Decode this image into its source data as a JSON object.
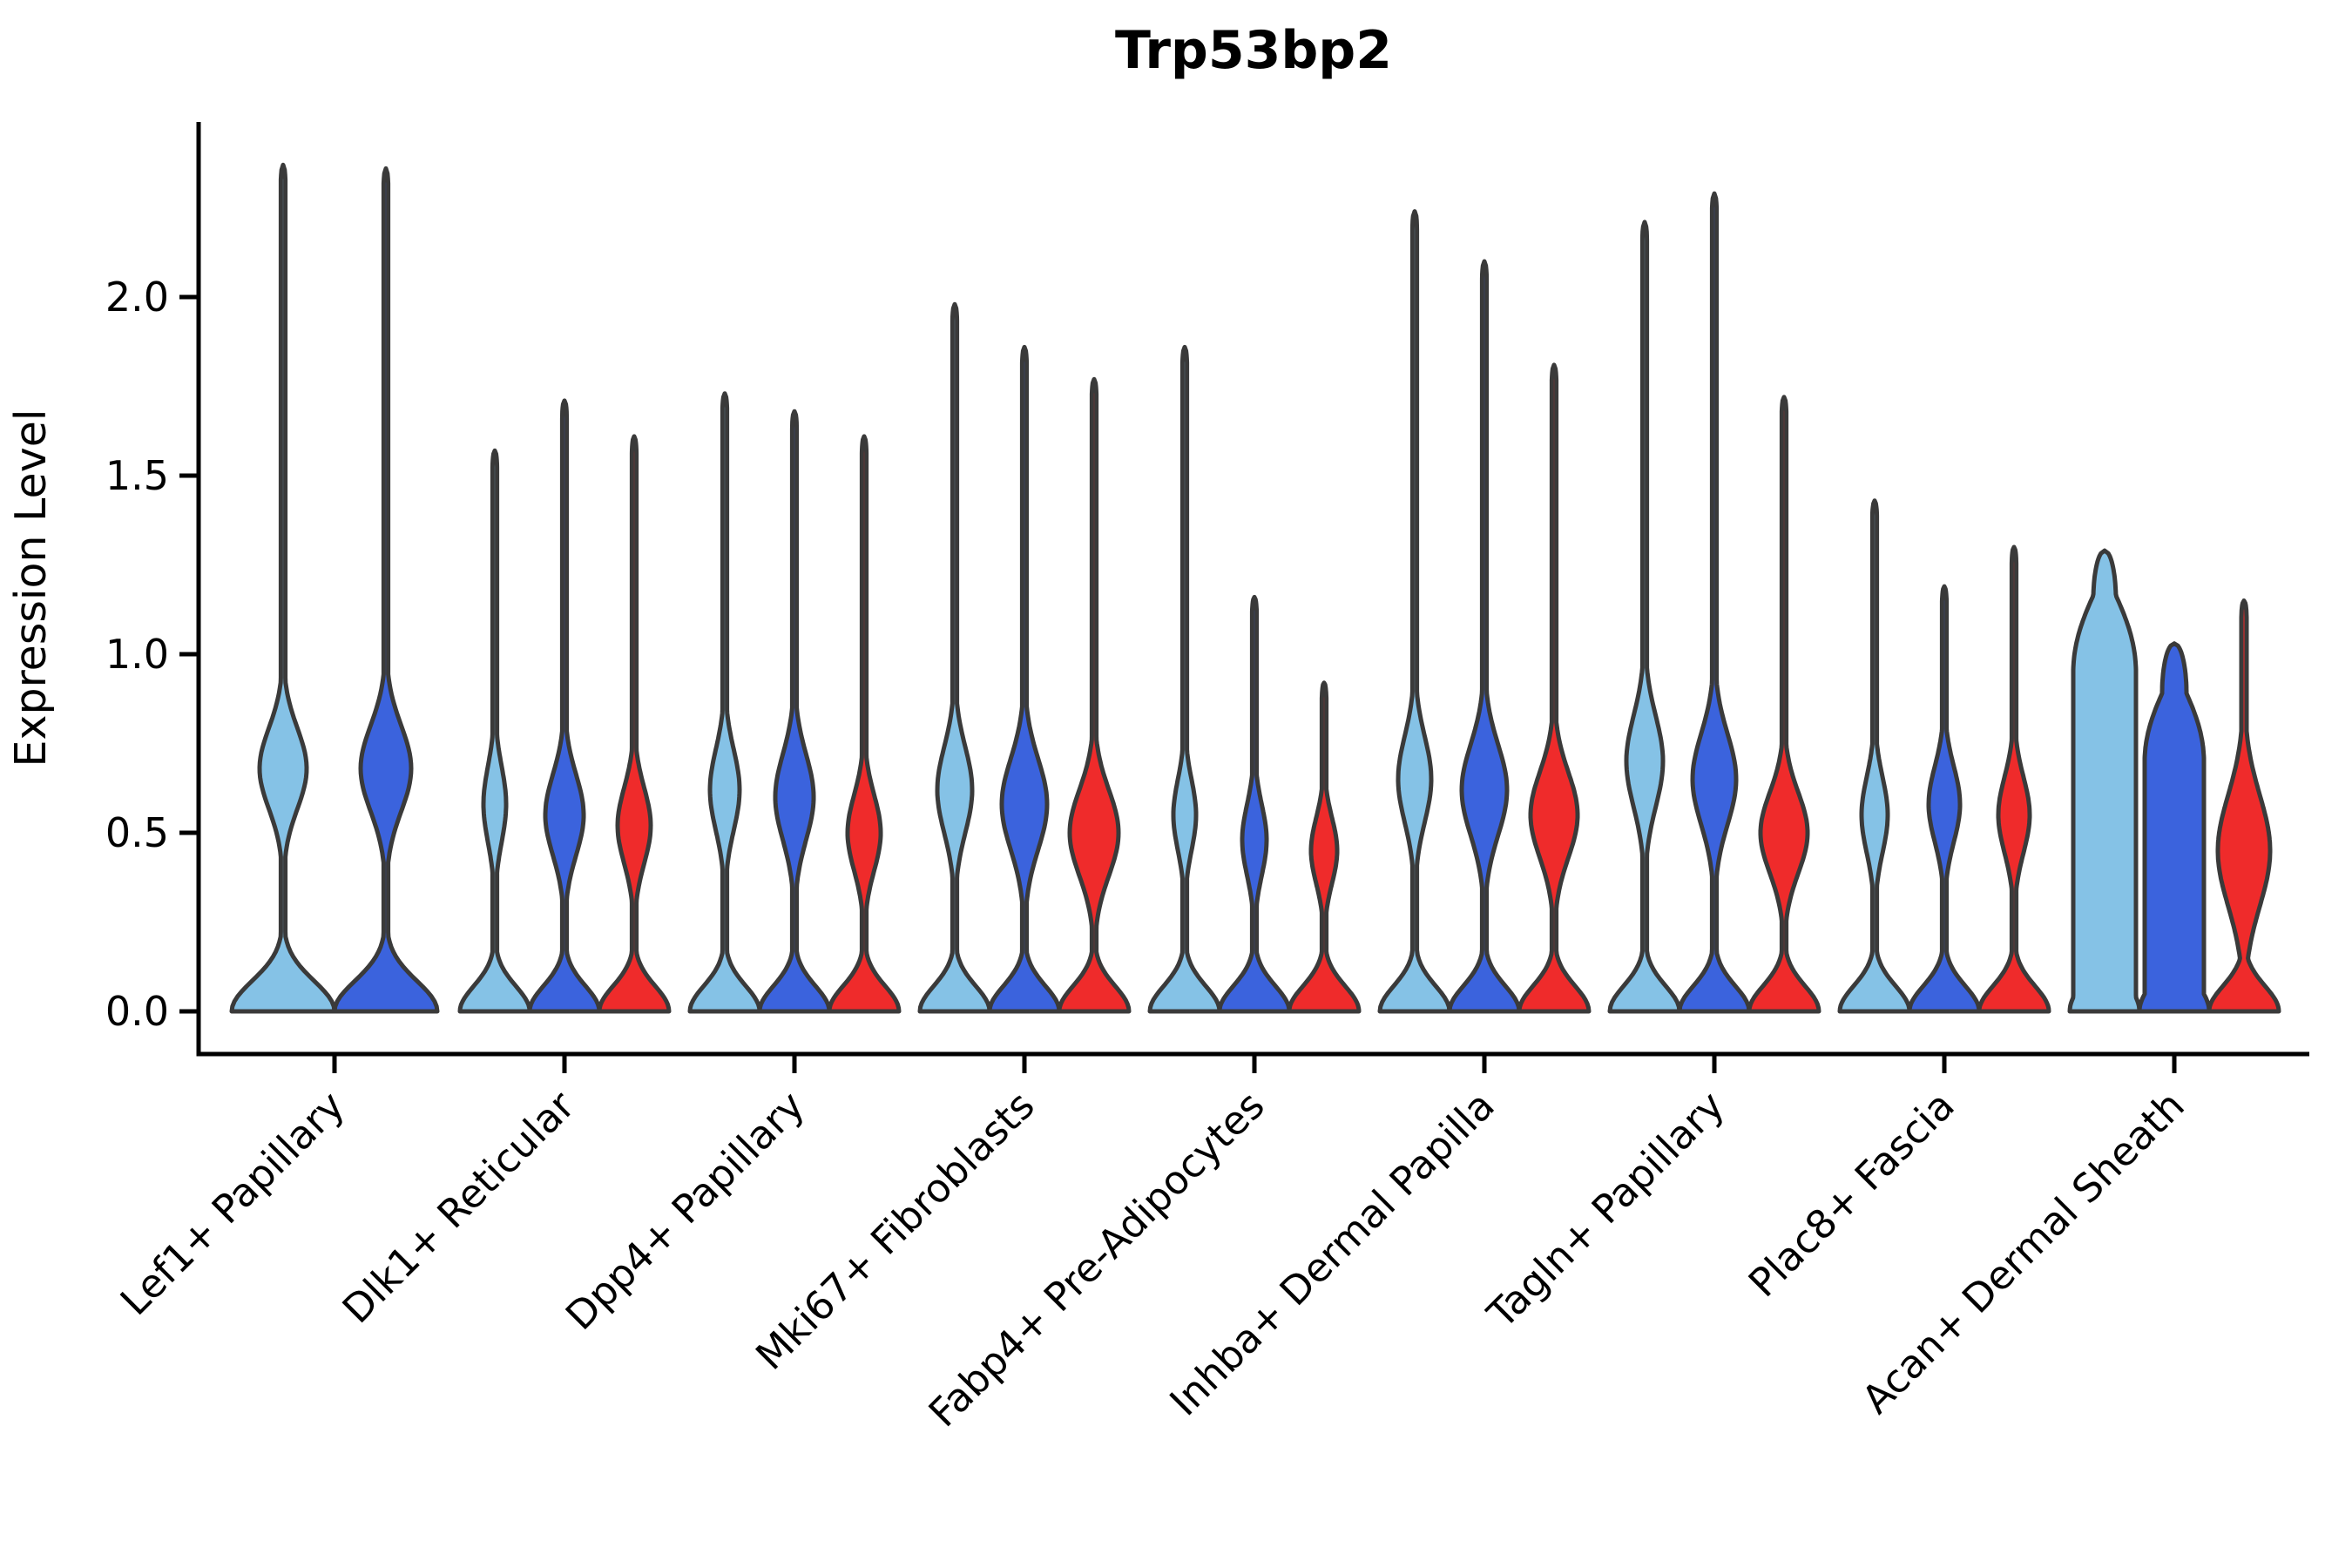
{
  "title": "Trp53bp2",
  "chart_data": {
    "type": "violin",
    "title": "Trp53bp2",
    "xlabel": "",
    "ylabel": "Expression Level",
    "ylim": [
      -0.12,
      2.49
    ],
    "yticks": [
      0.0,
      0.5,
      1.0,
      1.5,
      2.0
    ],
    "ytick_labels": [
      "0.0",
      "0.5",
      "1.0",
      "1.5",
      "2.0"
    ],
    "grid": false,
    "legend_position": "none",
    "x_tick_rotation_deg": 45,
    "colors": {
      "light_blue": "#85C2E6",
      "dark_blue": "#3B63DD",
      "red": "#EF2B2B",
      "outline": "#3A3A3A",
      "axis": "#000000",
      "background": "#FFFFFF"
    },
    "categories": [
      "Lef1+ Papillary",
      "Dlk1+ Reticular",
      "Dpp4+ Papillary",
      "Mki67+ Fibroblasts",
      "Fabp4+ Pre-Adipocytes",
      "Inhba+ Dermal Papilla",
      "Tagln+ Papillary",
      "Plac8+ Fascia",
      "Acan+ Dermal Sheath"
    ],
    "series_order": [
      "light_blue",
      "dark_blue",
      "red"
    ],
    "groups": [
      {
        "category": "Lef1+ Papillary",
        "violins": [
          {
            "series": "light_blue",
            "max": 2.37,
            "base_halfwidth": 59,
            "base_sigma": 0.12,
            "bulge_center": 0.68,
            "bulge_halfwidth": 27,
            "bulge_sigma": 0.16,
            "stem_halfwidth": 2.6
          },
          {
            "series": "dark_blue",
            "max": 2.36,
            "base_halfwidth": 59,
            "base_sigma": 0.12,
            "bulge_center": 0.68,
            "bulge_halfwidth": 29,
            "bulge_sigma": 0.17,
            "stem_halfwidth": 2.6
          }
        ]
      },
      {
        "category": "Dlk1+ Reticular",
        "violins": [
          {
            "series": "light_blue",
            "max": 1.57,
            "base_halfwidth": 40,
            "base_sigma": 0.1,
            "bulge_center": 0.58,
            "bulge_halfwidth": 13,
            "bulge_sigma": 0.15,
            "stem_halfwidth": 2.6
          },
          {
            "series": "dark_blue",
            "max": 1.71,
            "base_halfwidth": 40,
            "base_sigma": 0.1,
            "bulge_center": 0.55,
            "bulge_halfwidth": 22,
            "bulge_sigma": 0.16,
            "stem_halfwidth": 2.6
          },
          {
            "series": "red",
            "max": 1.61,
            "base_halfwidth": 40,
            "base_sigma": 0.1,
            "bulge_center": 0.52,
            "bulge_halfwidth": 19,
            "bulge_sigma": 0.15,
            "stem_halfwidth": 2.6
          }
        ]
      },
      {
        "category": "Dpp4+ Papillary",
        "violins": [
          {
            "series": "light_blue",
            "max": 1.73,
            "base_halfwidth": 40,
            "base_sigma": 0.1,
            "bulge_center": 0.62,
            "bulge_halfwidth": 17,
            "bulge_sigma": 0.16,
            "stem_halfwidth": 2.6
          },
          {
            "series": "dark_blue",
            "max": 1.68,
            "base_halfwidth": 40,
            "base_sigma": 0.1,
            "bulge_center": 0.6,
            "bulge_halfwidth": 22,
            "bulge_sigma": 0.17,
            "stem_halfwidth": 2.6
          },
          {
            "series": "red",
            "max": 1.61,
            "base_halfwidth": 40,
            "base_sigma": 0.1,
            "bulge_center": 0.5,
            "bulge_halfwidth": 19,
            "bulge_sigma": 0.15,
            "stem_halfwidth": 2.6
          }
        ]
      },
      {
        "category": "Mki67+ Fibroblasts",
        "violins": [
          {
            "series": "light_blue",
            "max": 1.98,
            "base_halfwidth": 40,
            "base_sigma": 0.1,
            "bulge_center": 0.62,
            "bulge_halfwidth": 20,
            "bulge_sigma": 0.17,
            "stem_halfwidth": 2.6
          },
          {
            "series": "dark_blue",
            "max": 1.86,
            "base_halfwidth": 40,
            "base_sigma": 0.1,
            "bulge_center": 0.58,
            "bulge_halfwidth": 26,
            "bulge_sigma": 0.18,
            "stem_halfwidth": 2.6
          },
          {
            "series": "red",
            "max": 1.77,
            "base_halfwidth": 40,
            "base_sigma": 0.1,
            "bulge_center": 0.5,
            "bulge_halfwidth": 28,
            "bulge_sigma": 0.17,
            "stem_halfwidth": 2.6
          }
        ]
      },
      {
        "category": "Fabp4+ Pre-Adipocytes",
        "violins": [
          {
            "series": "light_blue",
            "max": 1.86,
            "base_halfwidth": 40,
            "base_sigma": 0.1,
            "bulge_center": 0.55,
            "bulge_halfwidth": 13,
            "bulge_sigma": 0.14,
            "stem_halfwidth": 2.6
          },
          {
            "series": "dark_blue",
            "max": 1.16,
            "base_halfwidth": 40,
            "base_sigma": 0.1,
            "bulge_center": 0.48,
            "bulge_halfwidth": 14,
            "bulge_sigma": 0.14,
            "stem_halfwidth": 2.6
          },
          {
            "series": "red",
            "max": 0.92,
            "base_halfwidth": 40,
            "base_sigma": 0.1,
            "bulge_center": 0.45,
            "bulge_halfwidth": 15,
            "bulge_sigma": 0.13,
            "stem_halfwidth": 2.6
          }
        ]
      },
      {
        "category": "Inhba+ Dermal Papilla",
        "violins": [
          {
            "series": "light_blue",
            "max": 2.24,
            "base_halfwidth": 40,
            "base_sigma": 0.1,
            "bulge_center": 0.65,
            "bulge_halfwidth": 19,
            "bulge_sigma": 0.17,
            "stem_halfwidth": 2.6
          },
          {
            "series": "dark_blue",
            "max": 2.1,
            "base_halfwidth": 40,
            "base_sigma": 0.1,
            "bulge_center": 0.62,
            "bulge_halfwidth": 26,
            "bulge_sigma": 0.18,
            "stem_halfwidth": 2.6
          },
          {
            "series": "red",
            "max": 1.81,
            "base_halfwidth": 40,
            "base_sigma": 0.1,
            "bulge_center": 0.55,
            "bulge_halfwidth": 27,
            "bulge_sigma": 0.17,
            "stem_halfwidth": 2.6
          }
        ]
      },
      {
        "category": "Tagln+ Papillary",
        "violins": [
          {
            "series": "light_blue",
            "max": 2.21,
            "base_halfwidth": 40,
            "base_sigma": 0.1,
            "bulge_center": 0.7,
            "bulge_halfwidth": 21,
            "bulge_sigma": 0.18,
            "stem_halfwidth": 2.6
          },
          {
            "series": "dark_blue",
            "max": 2.29,
            "base_halfwidth": 40,
            "base_sigma": 0.1,
            "bulge_center": 0.65,
            "bulge_halfwidth": 25,
            "bulge_sigma": 0.18,
            "stem_halfwidth": 2.6
          },
          {
            "series": "red",
            "max": 1.72,
            "base_halfwidth": 40,
            "base_sigma": 0.1,
            "bulge_center": 0.5,
            "bulge_halfwidth": 27,
            "bulge_sigma": 0.16,
            "stem_halfwidth": 2.6
          }
        ]
      },
      {
        "category": "Plac8+ Fascia",
        "violins": [
          {
            "series": "light_blue",
            "max": 1.43,
            "base_halfwidth": 40,
            "base_sigma": 0.1,
            "bulge_center": 0.55,
            "bulge_halfwidth": 15,
            "bulge_sigma": 0.15,
            "stem_halfwidth": 2.6
          },
          {
            "series": "dark_blue",
            "max": 1.19,
            "base_halfwidth": 40,
            "base_sigma": 0.1,
            "bulge_center": 0.58,
            "bulge_halfwidth": 18,
            "bulge_sigma": 0.15,
            "stem_halfwidth": 2.6
          },
          {
            "series": "red",
            "max": 1.3,
            "base_halfwidth": 40,
            "base_sigma": 0.1,
            "bulge_center": 0.55,
            "bulge_halfwidth": 18,
            "bulge_sigma": 0.15,
            "stem_halfwidth": 2.6
          }
        ]
      },
      {
        "category": "Acan+ Dermal Sheath",
        "violins": [
          {
            "series": "light_blue",
            "max": 1.29,
            "base_halfwidth": 40,
            "base_sigma": 0.12,
            "plateau_halfwidth": 36,
            "plateau_end": 0.95,
            "taper_len": 0.28,
            "stem_halfwidth": 13,
            "cap": 0.14
          },
          {
            "series": "dark_blue",
            "max": 1.03,
            "base_halfwidth": 40,
            "base_sigma": 0.12,
            "plateau_halfwidth": 34,
            "plateau_end": 0.7,
            "taper_len": 0.26,
            "stem_halfwidth": 14,
            "cap": 0.14
          },
          {
            "series": "red",
            "max": 1.15,
            "base_halfwidth": 40,
            "base_sigma": 0.1,
            "bulge_center": 0.45,
            "bulge_halfwidth": 30,
            "bulge_sigma": 0.22,
            "stem_halfwidth": 3
          }
        ]
      }
    ]
  }
}
